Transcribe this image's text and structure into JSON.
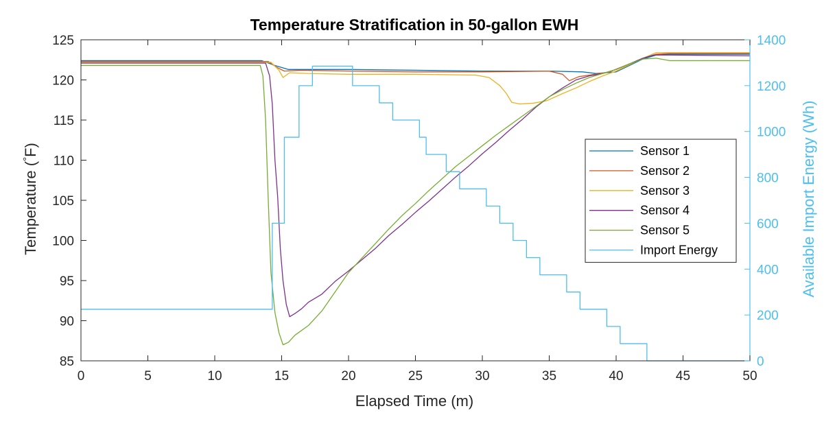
{
  "chart_data": {
    "type": "line",
    "title": "Temperature Stratification in 50-gallon EWH",
    "xlabel": "Elapsed Time (m)",
    "ylabel_left_main": "Temperature (",
    "ylabel_left_degree": "°",
    "ylabel_left_unit": "F)",
    "ylabel_right": "Available Import Energy (Wh)",
    "xlim": [
      0,
      50
    ],
    "ylim_left": [
      85,
      125
    ],
    "ylim_right": [
      0,
      1400
    ],
    "xticks": [
      0,
      5,
      10,
      15,
      20,
      25,
      30,
      35,
      40,
      45,
      50
    ],
    "yticks_left": [
      85,
      90,
      95,
      100,
      105,
      110,
      115,
      120,
      125
    ],
    "yticks_right": [
      0,
      200,
      400,
      600,
      800,
      1000,
      1200,
      1400
    ],
    "grid": false,
    "legend_position": "right",
    "colors": {
      "sensor1": "#0072BD",
      "sensor2": "#D95319",
      "sensor3": "#EDB120",
      "sensor4": "#7E2F8E",
      "sensor5": "#77AC30",
      "import_energy": "#4DBEEE",
      "right_axis": "#4DBEEE"
    },
    "series": [
      {
        "name": "Sensor 1",
        "axis": "left",
        "points": [
          [
            0,
            122.4
          ],
          [
            13.5,
            122.4
          ],
          [
            14.5,
            121.8
          ],
          [
            15.5,
            121.3
          ],
          [
            20,
            121.3
          ],
          [
            25,
            121.2
          ],
          [
            30,
            121.1
          ],
          [
            35,
            121.1
          ],
          [
            37.5,
            121.0
          ],
          [
            38.5,
            120.8
          ],
          [
            40,
            121.0
          ],
          [
            41,
            121.8
          ],
          [
            42,
            122.6
          ],
          [
            43,
            123.1
          ],
          [
            44,
            123.2
          ],
          [
            50,
            123.2
          ]
        ]
      },
      {
        "name": "Sensor 2",
        "axis": "left",
        "points": [
          [
            0,
            122.3
          ],
          [
            14,
            122.3
          ],
          [
            14.6,
            121.6
          ],
          [
            15.2,
            121.1
          ],
          [
            16.5,
            121.2
          ],
          [
            20,
            121.1
          ],
          [
            25,
            121.0
          ],
          [
            30,
            121.0
          ],
          [
            35,
            121.1
          ],
          [
            36,
            120.7
          ],
          [
            36.5,
            119.9
          ],
          [
            37.2,
            120.4
          ],
          [
            38,
            120.6
          ],
          [
            39.5,
            121.0
          ],
          [
            41,
            122.0
          ],
          [
            42,
            122.7
          ],
          [
            43,
            123.2
          ],
          [
            44,
            123.3
          ],
          [
            50,
            123.3
          ]
        ]
      },
      {
        "name": "Sensor 3",
        "axis": "left",
        "points": [
          [
            0,
            122.2
          ],
          [
            14.2,
            122.2
          ],
          [
            14.8,
            121.2
          ],
          [
            15.1,
            120.3
          ],
          [
            15.6,
            120.9
          ],
          [
            17,
            120.8
          ],
          [
            20,
            120.7
          ],
          [
            25,
            120.7
          ],
          [
            29.5,
            120.6
          ],
          [
            30.5,
            120.3
          ],
          [
            31.3,
            119.3
          ],
          [
            31.8,
            118.3
          ],
          [
            32.2,
            117.2
          ],
          [
            32.8,
            117.0
          ],
          [
            33.8,
            117.1
          ],
          [
            34.8,
            117.4
          ],
          [
            36,
            118.3
          ],
          [
            37,
            119.0
          ],
          [
            38,
            119.8
          ],
          [
            39,
            120.5
          ],
          [
            40,
            121.1
          ],
          [
            41,
            121.9
          ],
          [
            42,
            122.7
          ],
          [
            43,
            123.4
          ],
          [
            44,
            123.4
          ],
          [
            50,
            123.4
          ]
        ]
      },
      {
        "name": "Sensor 4",
        "axis": "left",
        "points": [
          [
            0,
            122.1
          ],
          [
            13.8,
            122.1
          ],
          [
            14.1,
            120.5
          ],
          [
            14.3,
            117
          ],
          [
            14.5,
            110
          ],
          [
            14.7,
            105.5
          ],
          [
            14.9,
            99
          ],
          [
            15.1,
            95
          ],
          [
            15.35,
            92
          ],
          [
            15.6,
            90.5
          ],
          [
            16,
            90.9
          ],
          [
            16.5,
            91.5
          ],
          [
            17,
            92.3
          ],
          [
            18,
            93.3
          ],
          [
            19,
            94.9
          ],
          [
            20,
            96.2
          ],
          [
            21,
            97.6
          ],
          [
            22,
            99.0
          ],
          [
            23,
            100.6
          ],
          [
            24,
            102.0
          ],
          [
            25,
            103.5
          ],
          [
            26,
            104.9
          ],
          [
            27,
            106.4
          ],
          [
            28,
            107.9
          ],
          [
            29,
            109.3
          ],
          [
            30,
            110.8
          ],
          [
            31,
            112.2
          ],
          [
            32,
            113.7
          ],
          [
            33,
            115.1
          ],
          [
            34,
            116.6
          ],
          [
            35,
            117.9
          ],
          [
            36,
            119.0
          ],
          [
            37,
            120.0
          ],
          [
            38,
            120.5
          ],
          [
            39,
            120.8
          ],
          [
            40,
            121.3
          ],
          [
            41,
            122.0
          ],
          [
            42,
            122.7
          ],
          [
            42.8,
            123.1
          ],
          [
            44,
            123.1
          ],
          [
            50,
            123.0
          ]
        ]
      },
      {
        "name": "Sensor 5",
        "axis": "left",
        "points": [
          [
            0,
            121.8
          ],
          [
            13.4,
            121.8
          ],
          [
            13.6,
            120.5
          ],
          [
            13.8,
            115
          ],
          [
            14.0,
            105
          ],
          [
            14.2,
            96
          ],
          [
            14.5,
            91
          ],
          [
            14.8,
            88.5
          ],
          [
            15.1,
            87.0
          ],
          [
            15.5,
            87.3
          ],
          [
            16,
            88.2
          ],
          [
            17,
            89.4
          ],
          [
            18,
            91.2
          ],
          [
            19,
            93.6
          ],
          [
            20,
            96.0
          ],
          [
            21,
            97.8
          ],
          [
            22,
            99.6
          ],
          [
            23,
            101.4
          ],
          [
            24,
            103.1
          ],
          [
            25,
            104.6
          ],
          [
            26,
            106.2
          ],
          [
            27,
            107.7
          ],
          [
            28,
            109.2
          ],
          [
            29,
            110.5
          ],
          [
            30,
            111.8
          ],
          [
            31,
            113.1
          ],
          [
            32,
            114.3
          ],
          [
            33,
            115.5
          ],
          [
            34,
            116.7
          ],
          [
            35,
            117.9
          ],
          [
            36,
            118.8
          ],
          [
            37,
            119.6
          ],
          [
            38,
            120.3
          ],
          [
            39,
            120.8
          ],
          [
            40,
            121.3
          ],
          [
            41,
            122.0
          ],
          [
            42,
            122.6
          ],
          [
            43,
            122.7
          ],
          [
            44,
            122.4
          ],
          [
            46,
            122.4
          ],
          [
            48,
            122.4
          ],
          [
            50,
            122.4
          ]
        ]
      },
      {
        "name": "Import Energy",
        "axis": "right",
        "step": true,
        "points": [
          [
            0,
            225
          ],
          [
            14.3,
            225
          ],
          [
            14.3,
            600
          ],
          [
            15.2,
            600
          ],
          [
            15.2,
            975
          ],
          [
            16.3,
            975
          ],
          [
            16.3,
            1200
          ],
          [
            17.3,
            1200
          ],
          [
            17.3,
            1285
          ],
          [
            20.3,
            1285
          ],
          [
            20.3,
            1200
          ],
          [
            22.3,
            1200
          ],
          [
            22.3,
            1125
          ],
          [
            23.3,
            1125
          ],
          [
            23.3,
            1050
          ],
          [
            25.3,
            1050
          ],
          [
            25.3,
            975
          ],
          [
            25.8,
            975
          ],
          [
            25.8,
            900
          ],
          [
            27.3,
            900
          ],
          [
            27.3,
            825
          ],
          [
            28.3,
            825
          ],
          [
            28.3,
            750
          ],
          [
            30.3,
            750
          ],
          [
            30.3,
            675
          ],
          [
            31.3,
            675
          ],
          [
            31.3,
            600
          ],
          [
            32.3,
            600
          ],
          [
            32.3,
            525
          ],
          [
            33.3,
            525
          ],
          [
            33.3,
            450
          ],
          [
            34.3,
            450
          ],
          [
            34.3,
            375
          ],
          [
            36.3,
            375
          ],
          [
            36.3,
            300
          ],
          [
            37.3,
            300
          ],
          [
            37.3,
            225
          ],
          [
            39.3,
            225
          ],
          [
            39.3,
            150
          ],
          [
            40.3,
            150
          ],
          [
            40.3,
            75
          ],
          [
            42.3,
            75
          ],
          [
            42.3,
            0
          ],
          [
            50,
            0
          ]
        ]
      }
    ]
  }
}
